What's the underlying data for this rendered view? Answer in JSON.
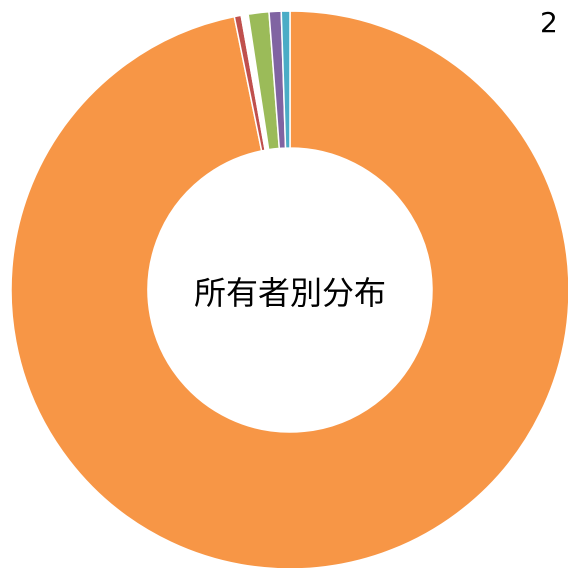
{
  "chart_data": {
    "type": "pie",
    "center_label": "所有者別分布",
    "annotation": "2",
    "categories": [
      null,
      null,
      null,
      null,
      null,
      null
    ],
    "values": [
      96.8,
      0.4,
      0.4,
      1.2,
      0.7,
      0.5
    ],
    "colors": [
      "#f79646",
      "#c0504d",
      "#ffffff",
      "#9bbb59",
      "#8064a2",
      "#4bacc6"
    ]
  }
}
